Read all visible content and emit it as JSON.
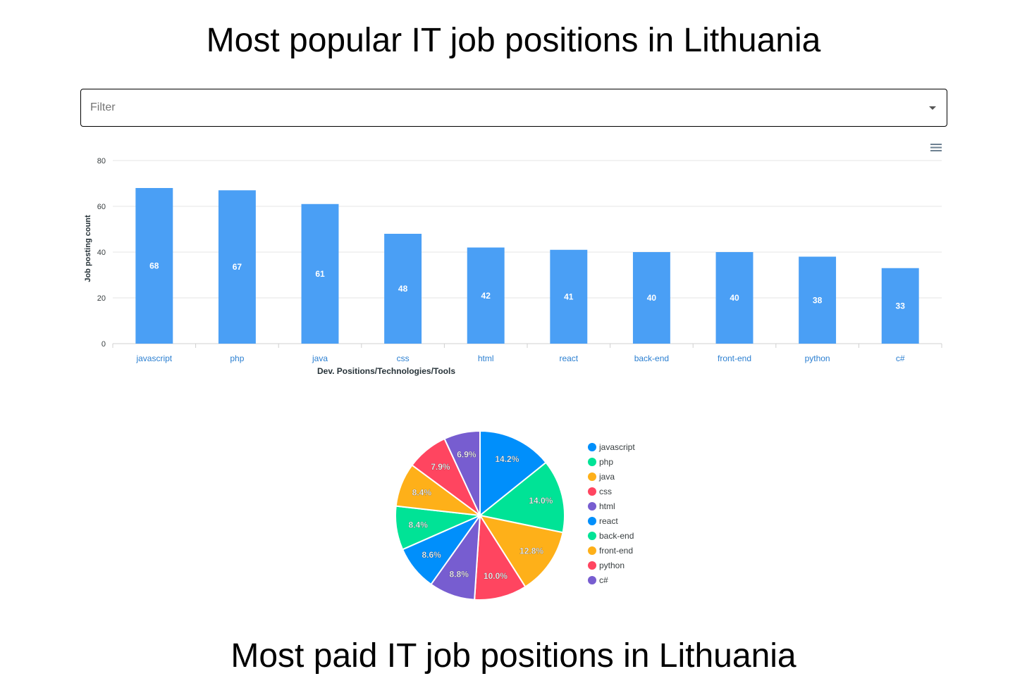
{
  "page": {
    "title_top": "Most popular IT job positions in Lithuania",
    "title_bottom": "Most paid IT job positions in Lithuania"
  },
  "filter": {
    "placeholder": "Filter"
  },
  "toolbar": {
    "menu_icon": "hamburger-menu-icon"
  },
  "colors": {
    "bar": "#4a9ff5",
    "pie": [
      "#008ffb",
      "#00e396",
      "#feb019",
      "#ff4560",
      "#775dd0"
    ]
  },
  "chart_data": [
    {
      "type": "bar",
      "categories": [
        "javascript",
        "php",
        "java",
        "css",
        "html",
        "react",
        "back-end",
        "front-end",
        "python",
        "c#"
      ],
      "values": [
        68,
        67,
        61,
        48,
        42,
        41,
        40,
        40,
        38,
        33
      ],
      "xlabel": "Dev. Positions/Technologies/Tools",
      "ylabel": "Job posting count",
      "ylim": [
        0,
        80
      ],
      "yticks": [
        0,
        20,
        40,
        60,
        80
      ],
      "grid": true
    },
    {
      "type": "pie",
      "labels": [
        "javascript",
        "php",
        "java",
        "css",
        "html",
        "react",
        "back-end",
        "front-end",
        "python",
        "c#"
      ],
      "values": [
        68,
        67,
        61,
        48,
        42,
        41,
        40,
        40,
        38,
        33
      ],
      "percent_labels": [
        "14.2%",
        "14.0%",
        "12.8%",
        "10.0%",
        "8.8%",
        "8.6%",
        "8.4%",
        "8.4%",
        "7.9%",
        "6.9%"
      ],
      "legend_position": "right"
    }
  ]
}
